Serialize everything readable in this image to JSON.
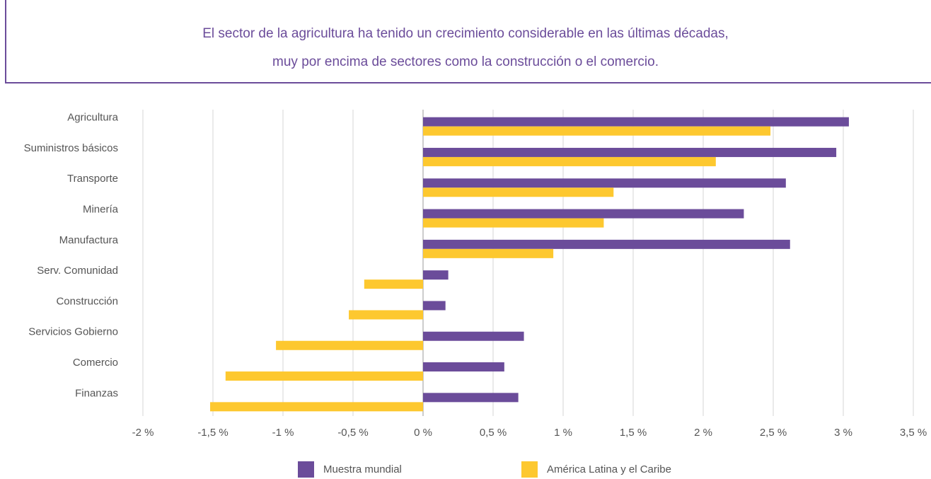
{
  "chart_data": {
    "type": "hbar",
    "title_lines": [
      "El sector de la agricultura ha tenido un crecimiento considerable en las últimas décadas,",
      "muy por encima de sectores como la construcción o el comercio."
    ],
    "categories": [
      "Agricultura",
      "Suministros básicos",
      "Transporte",
      "Minería",
      "Manufactura",
      "Serv. Comunidad",
      "Construcción",
      "Servicios Gobierno",
      "Comercio",
      "Finanzas"
    ],
    "series": [
      {
        "name": "Muestra mundial",
        "color": "#6b4c9a",
        "values": [
          3.04,
          2.95,
          2.59,
          2.29,
          2.62,
          0.18,
          0.16,
          0.72,
          0.58,
          0.68
        ]
      },
      {
        "name": "América Latina y el Caribe",
        "color": "#fdc82f",
        "values": [
          2.48,
          2.09,
          1.36,
          1.29,
          0.93,
          -0.42,
          -0.53,
          -1.05,
          -1.41,
          -1.52
        ]
      }
    ],
    "xlim": [
      -2,
      3.5
    ],
    "xticks": [
      {
        "value": -2,
        "label": "-2 %"
      },
      {
        "value": -1.5,
        "label": "-1,5 %"
      },
      {
        "value": -1,
        "label": "-1 %"
      },
      {
        "value": -0.5,
        "label": "-0,5 %"
      },
      {
        "value": 0,
        "label": "0 %"
      },
      {
        "value": 0.5,
        "label": "0,5 %"
      },
      {
        "value": 1,
        "label": "1 %"
      },
      {
        "value": 1.5,
        "label": "1,5 %"
      },
      {
        "value": 2,
        "label": "2 %"
      },
      {
        "value": 2.5,
        "label": "2,5 %"
      },
      {
        "value": 3,
        "label": "3 %"
      },
      {
        "value": 3.5,
        "label": "3,5 %"
      }
    ],
    "grid": true
  }
}
